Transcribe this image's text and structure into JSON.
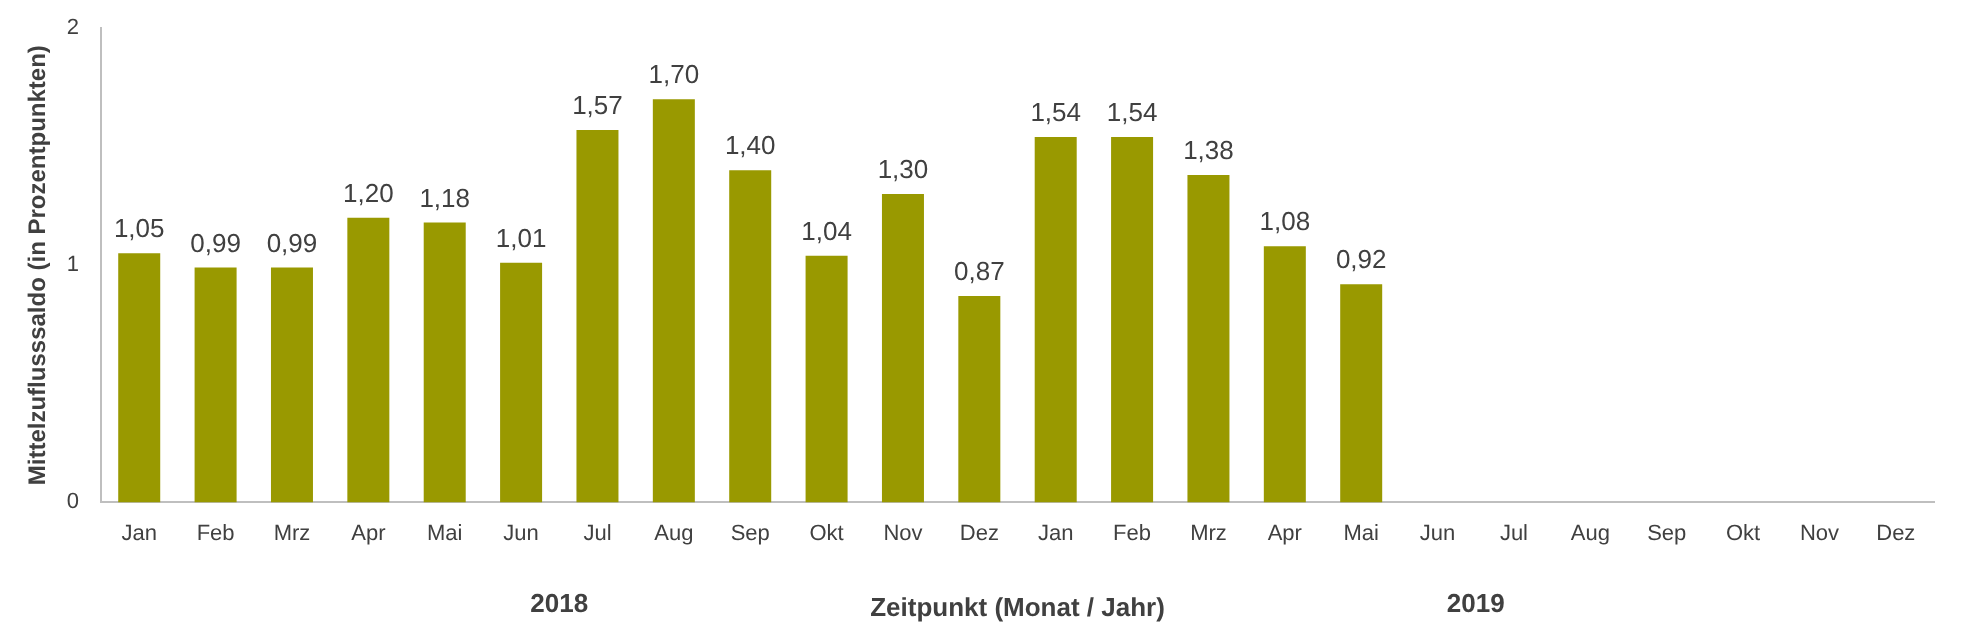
{
  "chart_data": {
    "type": "bar",
    "xlabel": "Zeitpunkt (Monat / Jahr)",
    "ylabel": "Mittelzuflusssaldo (in Prozentpunkten)",
    "categories": [
      "Jan",
      "Feb",
      "Mrz",
      "Apr",
      "Mai",
      "Jun",
      "Jul",
      "Aug",
      "Sep",
      "Okt",
      "Nov",
      "Dez",
      "Jan",
      "Feb",
      "Mrz",
      "Apr",
      "Mai",
      "Jun",
      "Jul",
      "Aug",
      "Sep",
      "Okt",
      "Nov",
      "Dez"
    ],
    "values": [
      1.05,
      0.99,
      0.99,
      1.2,
      1.18,
      1.01,
      1.57,
      1.7,
      1.4,
      1.04,
      1.3,
      0.87,
      1.54,
      1.54,
      1.38,
      1.08,
      0.92,
      null,
      null,
      null,
      null,
      null,
      null,
      null
    ],
    "value_labels": [
      "1,05",
      "0,99",
      "0,99",
      "1,20",
      "1,18",
      "1,01",
      "1,57",
      "1,70",
      "1,40",
      "1,04",
      "1,30",
      "0,87",
      "1,54",
      "1,54",
      "1,38",
      "1,08",
      "0,92",
      null,
      null,
      null,
      null,
      null,
      null,
      null
    ],
    "color": "#999900",
    "ylim": [
      0,
      2
    ],
    "yticks": [
      0,
      1,
      2
    ],
    "grid": false,
    "legend": false,
    "annotations": [
      "2018",
      "2019"
    ]
  }
}
